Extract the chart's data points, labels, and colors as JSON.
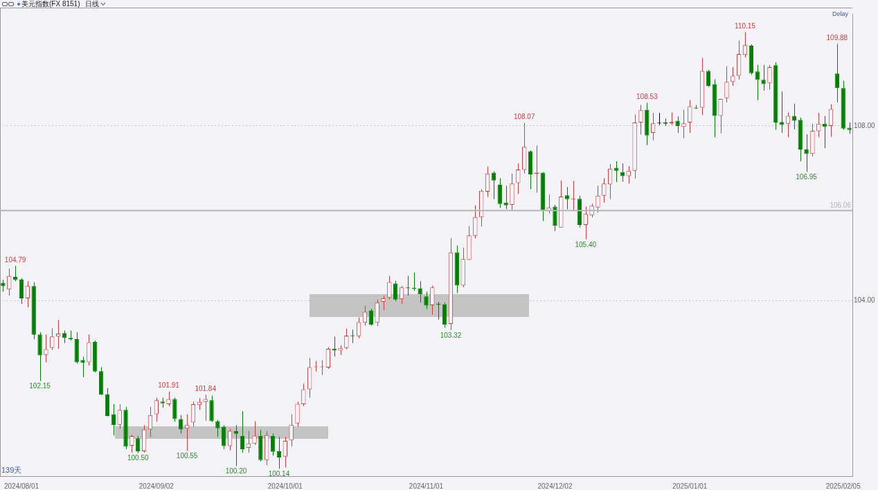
{
  "chart_data": {
    "type": "candlestick",
    "title": "美元指数(FX 8151)",
    "subtitle": "日线",
    "categories": [
      null,
      null,
      null,
      "2024/08/01",
      null,
      null,
      null,
      null,
      null,
      null,
      null,
      null,
      null,
      null,
      null,
      null,
      null,
      null,
      null,
      null,
      null,
      null,
      null,
      null,
      null,
      "2024/09/02",
      null,
      null,
      null,
      null,
      null,
      null,
      null,
      null,
      null,
      null,
      null,
      null,
      null,
      null,
      null,
      null,
      null,
      null,
      null,
      null,
      "2024/10/01",
      null,
      null,
      null,
      null,
      null,
      null,
      null,
      null,
      null,
      null,
      null,
      null,
      null,
      null,
      null,
      null,
      null,
      null,
      null,
      null,
      null,
      null,
      "2024/11/01",
      null,
      null,
      null,
      null,
      null,
      null,
      null,
      null,
      null,
      null,
      null,
      null,
      null,
      null,
      null,
      null,
      null,
      null,
      null,
      null,
      "2024/12/02",
      null,
      null,
      null,
      null,
      null,
      null,
      null,
      null,
      null,
      null,
      null,
      null,
      null,
      null,
      null,
      null,
      null,
      null,
      null,
      null,
      null,
      "2025/01/01",
      null,
      null,
      null,
      null,
      null,
      null,
      null,
      null,
      null,
      null,
      null,
      null,
      null,
      null,
      null,
      null,
      null,
      null,
      null,
      null,
      null,
      null,
      null,
      null,
      "2025/02/05",
      null
    ],
    "ohlc": [
      [
        104.4,
        104.47,
        104.2,
        104.33
      ],
      [
        104.25,
        104.73,
        104.11,
        104.56
      ],
      [
        104.54,
        104.79,
        104.44,
        104.47
      ],
      [
        104.48,
        104.51,
        103.92,
        104.05
      ],
      [
        104.05,
        104.44,
        103.84,
        104.33
      ],
      [
        104.33,
        104.42,
        103.11,
        103.21
      ],
      [
        103.22,
        103.27,
        102.15,
        102.74
      ],
      [
        102.75,
        103.22,
        102.58,
        102.88
      ],
      [
        102.91,
        103.36,
        102.86,
        103.17
      ],
      [
        103.17,
        103.55,
        102.89,
        103.24
      ],
      [
        103.25,
        103.31,
        103.02,
        103.14
      ],
      [
        103.14,
        103.31,
        103.08,
        103.11
      ],
      [
        103.11,
        103.27,
        102.55,
        102.58
      ],
      [
        102.63,
        102.71,
        102.24,
        102.57
      ],
      [
        102.58,
        103.22,
        102.51,
        103.04
      ],
      [
        103.05,
        103.08,
        102.35,
        102.37
      ],
      [
        102.38,
        102.47,
        101.83,
        101.84
      ],
      [
        101.85,
        101.99,
        101.34,
        101.35
      ],
      [
        101.39,
        101.62,
        100.9,
        101.14
      ],
      [
        101.15,
        101.62,
        101.06,
        101.49
      ],
      [
        101.49,
        101.56,
        100.59,
        100.65
      ],
      [
        100.67,
        100.92,
        100.51,
        100.89
      ],
      [
        100.84,
        100.89,
        100.5,
        100.54
      ],
      [
        100.54,
        101.14,
        100.51,
        101.04
      ],
      [
        101.04,
        101.56,
        100.87,
        101.37
      ],
      [
        101.39,
        101.77,
        101.22,
        101.71
      ],
      [
        101.68,
        101.77,
        101.54,
        101.64
      ],
      [
        101.62,
        101.91,
        101.57,
        101.74
      ],
      [
        101.74,
        101.77,
        101.22,
        101.28
      ],
      [
        101.28,
        101.37,
        100.95,
        101.04
      ],
      [
        101.06,
        101.39,
        100.55,
        101.15
      ],
      [
        101.2,
        101.68,
        101.1,
        101.62
      ],
      [
        101.6,
        101.76,
        101.49,
        101.67
      ],
      [
        101.67,
        101.84,
        101.24,
        101.74
      ],
      [
        101.71,
        101.82,
        101.21,
        101.23
      ],
      [
        101.23,
        101.26,
        100.87,
        101.07
      ],
      [
        101.1,
        101.14,
        100.59,
        100.66
      ],
      [
        100.66,
        101.06,
        100.56,
        101.01
      ],
      [
        101.0,
        101.14,
        100.2,
        100.94
      ],
      [
        100.89,
        101.46,
        100.51,
        100.59
      ],
      [
        100.62,
        101.0,
        100.51,
        100.72
      ],
      [
        100.72,
        101.23,
        100.69,
        100.9
      ],
      [
        100.89,
        101.03,
        100.31,
        100.34
      ],
      [
        100.34,
        101.0,
        100.22,
        100.91
      ],
      [
        100.89,
        100.95,
        100.44,
        100.53
      ],
      [
        100.54,
        100.87,
        100.14,
        100.4
      ],
      [
        100.42,
        100.87,
        100.17,
        100.78
      ],
      [
        100.79,
        101.39,
        100.65,
        101.15
      ],
      [
        101.18,
        101.68,
        101.1,
        101.63
      ],
      [
        101.62,
        102.09,
        101.57,
        101.96
      ],
      [
        101.96,
        102.68,
        101.77,
        102.47
      ],
      [
        102.47,
        102.61,
        102.37,
        102.48
      ],
      [
        102.47,
        102.63,
        102.29,
        102.48
      ],
      [
        102.46,
        102.93,
        102.43,
        102.89
      ],
      [
        102.89,
        103.17,
        102.71,
        102.85
      ],
      [
        102.85,
        102.97,
        102.75,
        102.91
      ],
      [
        102.91,
        103.35,
        102.88,
        103.19
      ],
      [
        103.2,
        103.33,
        103.02,
        103.18
      ],
      [
        103.18,
        103.61,
        103.13,
        103.5
      ],
      [
        103.49,
        103.88,
        103.42,
        103.74
      ],
      [
        103.77,
        103.81,
        103.42,
        103.44
      ],
      [
        103.49,
        104.02,
        103.41,
        103.95
      ],
      [
        103.97,
        104.11,
        103.78,
        104.05
      ],
      [
        104.06,
        104.56,
        104.02,
        104.42
      ],
      [
        104.39,
        104.45,
        103.98,
        104.02
      ],
      [
        104.03,
        104.33,
        103.92,
        104.3
      ],
      [
        104.3,
        104.56,
        104.11,
        104.28
      ],
      [
        104.28,
        104.64,
        104.22,
        104.27
      ],
      [
        104.28,
        104.44,
        103.95,
        104.14
      ],
      [
        104.09,
        104.2,
        103.8,
        103.88
      ],
      [
        103.89,
        104.34,
        103.67,
        104.3
      ],
      [
        103.92,
        103.97,
        103.56,
        103.9
      ],
      [
        103.91,
        103.95,
        103.38,
        103.44
      ],
      [
        103.46,
        105.43,
        103.32,
        105.1
      ],
      [
        105.1,
        105.26,
        104.17,
        104.34
      ],
      [
        104.34,
        105.21,
        104.3,
        104.95
      ],
      [
        104.93,
        105.7,
        104.92,
        105.49
      ],
      [
        105.48,
        106.18,
        105.42,
        105.91
      ],
      [
        105.91,
        106.55,
        105.7,
        106.51
      ],
      [
        106.49,
        107.07,
        106.37,
        106.91
      ],
      [
        106.93,
        106.96,
        106.32,
        106.75
      ],
      [
        106.65,
        106.8,
        106.12,
        106.21
      ],
      [
        106.24,
        106.63,
        106.09,
        106.18
      ],
      [
        106.19,
        106.91,
        106.05,
        106.68
      ],
      [
        106.69,
        107.14,
        106.44,
        107.0
      ],
      [
        106.99,
        108.07,
        106.91,
        107.52
      ],
      [
        107.42,
        107.44,
        106.55,
        106.89
      ],
      [
        106.9,
        107.55,
        106.47,
        106.93
      ],
      [
        106.93,
        106.94,
        105.82,
        106.07
      ],
      [
        106.05,
        106.43,
        105.99,
        106.13
      ],
      [
        106.15,
        106.19,
        105.59,
        105.71
      ],
      [
        105.67,
        106.75,
        105.67,
        106.38
      ],
      [
        106.41,
        106.6,
        106.09,
        106.32
      ],
      [
        106.31,
        106.74,
        106.05,
        106.33
      ],
      [
        106.33,
        106.4,
        105.67,
        105.73
      ],
      [
        105.73,
        106.15,
        105.4,
        105.98
      ],
      [
        105.95,
        106.22,
        105.9,
        106.17
      ],
      [
        106.13,
        106.63,
        106.01,
        106.4
      ],
      [
        106.4,
        106.8,
        106.24,
        106.68
      ],
      [
        106.66,
        107.13,
        106.32,
        107.02
      ],
      [
        107.04,
        107.19,
        106.71,
        106.97
      ],
      [
        106.94,
        107.14,
        106.72,
        106.85
      ],
      [
        106.85,
        107.08,
        106.68,
        106.97
      ],
      [
        106.97,
        108.26,
        106.79,
        108.08
      ],
      [
        108.08,
        108.48,
        107.8,
        108.36
      ],
      [
        108.37,
        108.53,
        107.56,
        107.78
      ],
      [
        107.84,
        108.3,
        107.67,
        108.06
      ],
      [
        108.06,
        108.3,
        108.02,
        108.06
      ],
      [
        108.08,
        108.17,
        108.0,
        108.05
      ],
      [
        108.06,
        108.31,
        108.02,
        108.09
      ],
      [
        108.12,
        108.22,
        107.84,
        108.0
      ],
      [
        107.98,
        108.37,
        107.72,
        108.06
      ],
      [
        108.08,
        108.59,
        107.84,
        108.45
      ],
      [
        108.42,
        108.48,
        108.39,
        108.4
      ],
      [
        108.42,
        109.56,
        108.25,
        109.26
      ],
      [
        109.26,
        109.29,
        108.89,
        108.92
      ],
      [
        108.96,
        109.07,
        107.74,
        108.23
      ],
      [
        108.23,
        108.62,
        107.83,
        108.62
      ],
      [
        108.64,
        109.37,
        108.54,
        109.01
      ],
      [
        109.01,
        109.35,
        108.92,
        109.15
      ],
      [
        109.15,
        109.96,
        109.06,
        109.65
      ],
      [
        109.63,
        110.15,
        109.57,
        109.85
      ],
      [
        109.84,
        109.87,
        109.17,
        109.21
      ],
      [
        109.25,
        109.4,
        108.59,
        109.06
      ],
      [
        109.06,
        109.4,
        108.81,
        108.96
      ],
      [
        108.98,
        109.4,
        108.83,
        109.35
      ],
      [
        109.39,
        109.46,
        107.91,
        108.08
      ],
      [
        108.09,
        108.79,
        107.84,
        108.03
      ],
      [
        108.05,
        108.31,
        107.74,
        108.23
      ],
      [
        108.23,
        108.51,
        107.92,
        108.12
      ],
      [
        108.14,
        108.19,
        107.19,
        107.46
      ],
      [
        107.46,
        107.81,
        106.95,
        107.36
      ],
      [
        107.36,
        108.05,
        107.3,
        107.89
      ],
      [
        107.88,
        108.3,
        107.74,
        108.05
      ],
      [
        108.05,
        108.23,
        107.49,
        107.98
      ],
      [
        108.0,
        108.5,
        107.75,
        108.39
      ],
      [
        109.2,
        109.88,
        108.54,
        108.87
      ],
      [
        108.87,
        109.04,
        107.91,
        107.94
      ],
      [
        107.96,
        108.08,
        107.82,
        107.91
      ]
    ],
    "colors": [
      "#007f00",
      "#d03c3c",
      "#007f00",
      "#007f00",
      "#d03c3c",
      "#007f00",
      "#007f00",
      "#d03c3c",
      "#d03c3c",
      "#d03c3c",
      "#007f00",
      "#007f00",
      "#007f00",
      "#007f00",
      "#d03c3c",
      "#007f00",
      "#007f00",
      "#007f00",
      "#007f00",
      "#d03c3c",
      "#007f00",
      "#d03c3c",
      "#007f00",
      "#d03c3c",
      "#d03c3c",
      "#d03c3c",
      "#007f00",
      "#d03c3c",
      "#007f00",
      "#007f00",
      "#d03c3c",
      "#d03c3c",
      "#d03c3c",
      "#d03c3c",
      "#007f00",
      "#007f00",
      "#007f00",
      "#d03c3c",
      "#007f00",
      "#007f00",
      "#d03c3c",
      "#d03c3c",
      "#007f00",
      "#d03c3c",
      "#007f00",
      "#007f00",
      "#d03c3c",
      "#d03c3c",
      "#d03c3c",
      "#d03c3c",
      "#d03c3c",
      "#d03c3c",
      "#d03c3c",
      "#d03c3c",
      "#007f00",
      "#d03c3c",
      "#d03c3c",
      "#007f00",
      "#d03c3c",
      "#d03c3c",
      "#007f00",
      "#d03c3c",
      "#d03c3c",
      "#d03c3c",
      "#007f00",
      "#d03c3c",
      "#007f00",
      "#007f00",
      "#007f00",
      "#007f00",
      "#d03c3c",
      "#007f00",
      "#007f00",
      "#d03c3c",
      "#007f00",
      "#d03c3c",
      "#d03c3c",
      "#d03c3c",
      "#d03c3c",
      "#d03c3c",
      "#007f00",
      "#007f00",
      "#007f00",
      "#d03c3c",
      "#d03c3c",
      "#d03c3c",
      "#007f00",
      "#d03c3c",
      "#007f00",
      "#d03c3c",
      "#007f00",
      "#d03c3c",
      "#007f00",
      "#d03c3c",
      "#007f00",
      "#d03c3c",
      "#d03c3c",
      "#d03c3c",
      "#d03c3c",
      "#d03c3c",
      "#007f00",
      "#007f00",
      "#d03c3c",
      "#d03c3c",
      "#d03c3c",
      "#007f00",
      "#d03c3c",
      "#000000",
      "#007f00",
      "#d03c3c",
      "#007f00",
      "#d03c3c",
      "#d03c3c",
      "#007f00",
      "#d03c3c",
      "#007f00",
      "#007f00",
      "#d03c3c",
      "#d03c3c",
      "#d03c3c",
      "#d03c3c",
      "#d03c3c",
      "#007f00",
      "#007f00",
      "#007f00",
      "#d03c3c",
      "#007f00",
      "#007f00",
      "#d03c3c",
      "#007f00",
      "#007f00",
      "#007f00",
      "#d03c3c",
      "#d03c3c",
      "#007f00",
      "#d03c3c",
      "#007f00",
      "#007f00",
      "#007f00"
    ],
    "ylim": [
      99.97,
      110.57
    ],
    "yticks": [
      {
        "value": 104,
        "label": "104.00"
      },
      {
        "value": 108,
        "label": "108.00"
      }
    ],
    "grid": "y",
    "ref_lines": [
      {
        "axis": "y",
        "value": 106.06,
        "label": "106.06",
        "color": "#b4b4b4"
      }
    ],
    "annotations": [
      {
        "text": "104.79",
        "y": 104.79
      },
      {
        "text": "102.15",
        "y": 102.15
      },
      {
        "text": "100.50",
        "y": 100.5
      },
      {
        "text": "101.91",
        "y": 101.91
      },
      {
        "text": "100.55",
        "y": 100.55
      },
      {
        "text": "101.84",
        "y": 101.84
      },
      {
        "text": "100.20",
        "y": 100.2
      },
      {
        "text": "100.14",
        "y": 100.14
      },
      {
        "text": "103.32",
        "y": 103.32
      },
      {
        "text": "108.07",
        "y": 108.07
      },
      {
        "text": "105.40",
        "y": 105.4
      },
      {
        "text": "108.53",
        "y": 108.53
      },
      {
        "text": "110.15",
        "y": 110.15
      },
      {
        "text": "106.95",
        "y": 106.95
      },
      {
        "text": "109.88",
        "y": 109.88
      },
      "Delay",
      "139天"
    ]
  }
}
